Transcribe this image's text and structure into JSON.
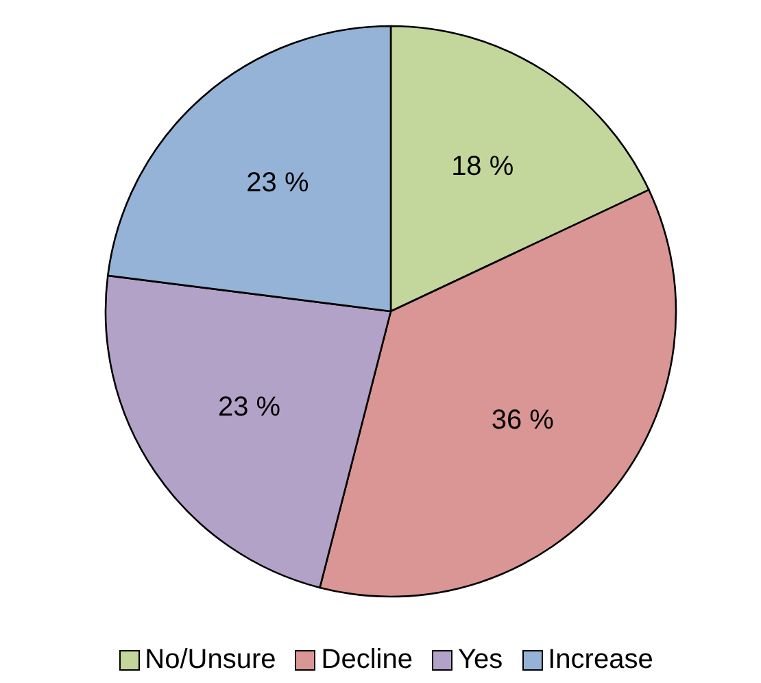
{
  "chart_data": {
    "type": "pie",
    "categories": [
      "No/Unsure",
      "Decline",
      "Yes",
      "Increase"
    ],
    "values": [
      18,
      36,
      23,
      23
    ],
    "colors": [
      "#c3d69b",
      "#d99694",
      "#b3a2c7",
      "#95b3d7"
    ],
    "value_labels": [
      "18 %",
      "36 %",
      "23 %",
      "23 %"
    ],
    "legend": "bottom"
  }
}
